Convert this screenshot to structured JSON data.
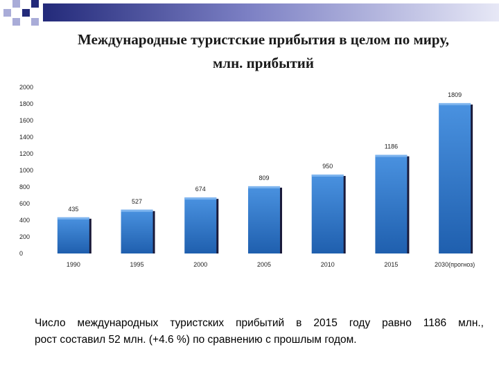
{
  "title_line1": "Международные туристские прибытия в целом по миру,",
  "title_line2": "млн. прибытий",
  "chart_data": {
    "type": "bar",
    "title": "",
    "categories": [
      "1990",
      "1995",
      "2000",
      "2005",
      "2010",
      "2015",
      "2030(прогноз)"
    ],
    "values": [
      435,
      527,
      674,
      809,
      950,
      1186,
      1809
    ],
    "data_labels": [
      "435",
      "527",
      "674",
      "809",
      "950",
      "1186",
      "1809"
    ],
    "ylim": [
      0,
      2000
    ],
    "yticks": [
      "0",
      "200",
      "400",
      "600",
      "800",
      "1000",
      "1200",
      "1400",
      "1600",
      "1800",
      "2000"
    ],
    "bar_color": "#2e75c8",
    "grid": false,
    "legend": "none"
  },
  "caption_line1": "Число международных туристских прибытий в 2015 году равно 1186 млн.,",
  "caption_line2": "рост составил 52 млн. (+4.6 %) по сравнению с прошлым годом.",
  "colors": {
    "accent_dark": "#232a7a",
    "accent_light": "#a9acd8"
  }
}
